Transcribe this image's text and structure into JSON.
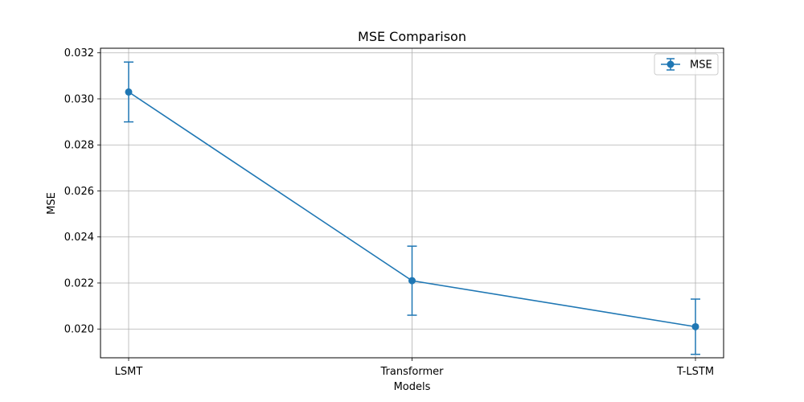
{
  "chart_data": {
    "type": "line",
    "title": "MSE Comparison",
    "xlabel": "Models",
    "ylabel": "MSE",
    "categories": [
      "LSMT",
      "Transformer",
      "T-LSTM"
    ],
    "series": [
      {
        "name": "MSE",
        "values": [
          0.0303,
          0.0221,
          0.0201
        ],
        "error_low": [
          0.029,
          0.0206,
          0.0189
        ],
        "error_high": [
          0.0316,
          0.0236,
          0.0213
        ],
        "color": "#1f77b4",
        "marker": "circle",
        "error_bars": true
      }
    ],
    "ylim": [
      0.01875,
      0.0322
    ],
    "yticks": [
      {
        "value": 0.02,
        "label": "0.020"
      },
      {
        "value": 0.022,
        "label": "0.022"
      },
      {
        "value": 0.024,
        "label": "0.024"
      },
      {
        "value": 0.026,
        "label": "0.026"
      },
      {
        "value": 0.028,
        "label": "0.028"
      },
      {
        "value": 0.03,
        "label": "0.030"
      },
      {
        "value": 0.032,
        "label": "0.032"
      }
    ],
    "grid": true,
    "legend_position": "top-right"
  }
}
